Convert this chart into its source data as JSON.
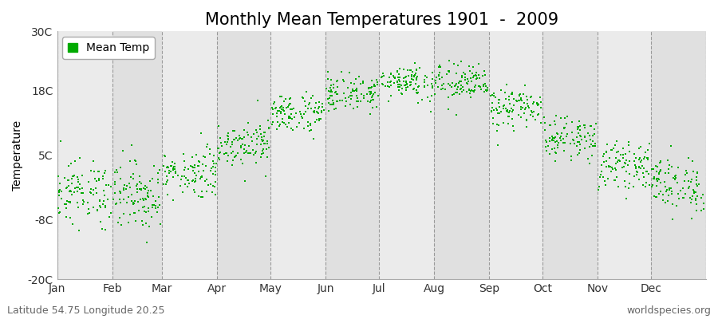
{
  "title": "Monthly Mean Temperatures 1901  -  2009",
  "ylabel": "Temperature",
  "yticks": [
    -20,
    -8,
    5,
    18,
    30
  ],
  "ytick_labels": [
    "-20C",
    "-8C",
    "5C",
    "18C",
    "30C"
  ],
  "ylim": [
    -20,
    30
  ],
  "months": [
    "Jan",
    "Feb",
    "Mar",
    "Apr",
    "May",
    "Jun",
    "Jul",
    "Aug",
    "Sep",
    "Oct",
    "Nov",
    "Dec"
  ],
  "month_starts": [
    0,
    31,
    59,
    90,
    120,
    151,
    181,
    212,
    243,
    273,
    304,
    334
  ],
  "month_lengths": [
    31,
    28,
    31,
    30,
    31,
    30,
    31,
    31,
    30,
    31,
    30,
    31
  ],
  "month_means": [
    -2.5,
    -3.0,
    1.5,
    7.5,
    13.5,
    17.5,
    20.0,
    19.5,
    14.5,
    8.5,
    3.0,
    -1.0
  ],
  "month_stds": [
    3.2,
    3.5,
    2.5,
    2.2,
    2.0,
    1.8,
    1.8,
    2.0,
    2.0,
    2.0,
    2.2,
    2.8
  ],
  "dot_color": "#00AA00",
  "background_color_light": "#EBEBEB",
  "background_color_dark": "#E0E0E0",
  "fig_background": "#FFFFFF",
  "legend_label": "Mean Temp",
  "bottom_left": "Latitude 54.75 Longitude 20.25",
  "bottom_right": "worldspecies.org",
  "years": 109,
  "total_days": 365,
  "title_fontsize": 15,
  "axis_fontsize": 10,
  "tick_fontsize": 10,
  "annotation_fontsize": 9,
  "dot_size": 3
}
